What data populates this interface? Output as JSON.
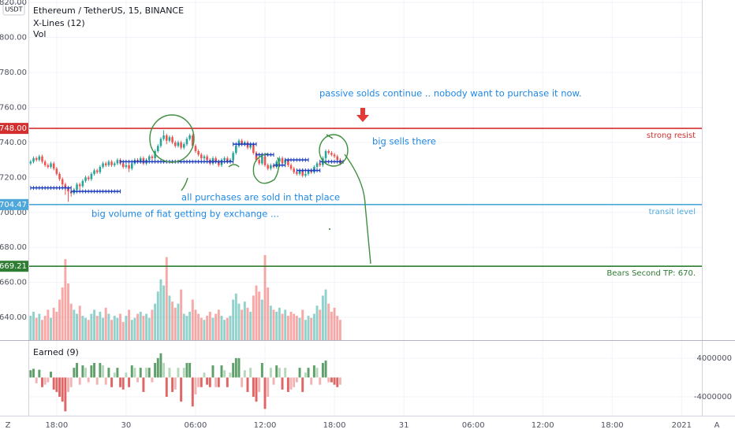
{
  "chart_data": {
    "type": "candlestick",
    "title": "Ethereum / TetherUS, 15, BINANCE",
    "currency": "USDT",
    "indicators": [
      "X-Lines (12)",
      "Vol"
    ],
    "grid": true,
    "up_color": "#26a69a",
    "down_color": "#ef5350",
    "xlim": [
      -0.5,
      232
    ],
    "ylim": [
      627,
      821.4
    ],
    "yticks": [
      {
        "value": 820,
        "label": "820.00"
      },
      {
        "value": 800,
        "label": "800.00"
      },
      {
        "value": 780,
        "label": "780.00"
      },
      {
        "value": 760,
        "label": "760.00"
      },
      {
        "value": 740,
        "label": "740.00"
      },
      {
        "value": 720,
        "label": "720.00"
      },
      {
        "value": 700,
        "label": "700.00"
      },
      {
        "value": 680,
        "label": "680.00"
      },
      {
        "value": 660,
        "label": "660.00"
      },
      {
        "value": 640,
        "label": "640.00"
      }
    ],
    "xticks": [
      {
        "value": 9,
        "label": "18:00"
      },
      {
        "value": 33,
        "label": "30"
      },
      {
        "value": 57,
        "label": "06:00"
      },
      {
        "value": 81,
        "label": "12:00"
      },
      {
        "value": 105,
        "label": "18:00"
      },
      {
        "value": 129,
        "label": "31"
      },
      {
        "value": 153,
        "label": "06:00"
      },
      {
        "value": 177,
        "label": "12:00"
      },
      {
        "value": 201,
        "label": "18:00"
      },
      {
        "value": 225,
        "label": "2021"
      }
    ],
    "candles": [
      [
        728,
        730,
        727,
        729
      ],
      [
        729,
        732,
        728,
        731
      ],
      [
        731,
        732,
        729,
        730
      ],
      [
        730,
        733,
        729,
        732
      ],
      [
        732,
        733,
        728,
        729
      ],
      [
        729,
        730,
        726,
        727
      ],
      [
        727,
        728,
        725,
        726
      ],
      [
        726,
        729,
        725,
        728
      ],
      [
        728,
        729,
        724,
        725
      ],
      [
        725,
        726,
        721,
        722
      ],
      [
        722,
        723,
        718,
        719
      ],
      [
        719,
        720,
        714,
        716
      ],
      [
        716,
        717,
        710,
        714
      ],
      [
        714,
        715,
        706,
        712
      ],
      [
        712,
        713,
        709,
        711
      ],
      [
        711,
        714,
        710,
        713
      ],
      [
        713,
        717,
        712,
        716
      ],
      [
        716,
        717,
        713,
        715
      ],
      [
        715,
        719,
        714,
        718
      ],
      [
        718,
        721,
        717,
        720
      ],
      [
        720,
        721,
        718,
        719
      ],
      [
        719,
        723,
        718,
        722
      ],
      [
        722,
        725,
        721,
        724
      ],
      [
        724,
        725,
        722,
        723
      ],
      [
        723,
        727,
        722,
        726
      ],
      [
        726,
        729,
        725,
        728
      ],
      [
        728,
        729,
        726,
        727
      ],
      [
        727,
        730,
        726,
        729
      ],
      [
        729,
        730,
        726,
        727
      ],
      [
        727,
        729,
        726,
        728
      ],
      [
        728,
        731,
        727,
        730
      ],
      [
        730,
        731,
        727,
        728
      ],
      [
        728,
        729,
        725,
        726
      ],
      [
        726,
        728,
        725,
        727
      ],
      [
        727,
        728,
        723,
        725
      ],
      [
        725,
        729,
        724,
        728
      ],
      [
        728,
        731,
        727,
        730
      ],
      [
        730,
        731,
        728,
        729
      ],
      [
        729,
        732,
        728,
        731
      ],
      [
        731,
        732,
        727,
        728
      ],
      [
        728,
        731,
        727,
        730
      ],
      [
        730,
        733,
        729,
        732
      ],
      [
        732,
        733,
        730,
        731
      ],
      [
        731,
        736,
        730,
        735
      ],
      [
        735,
        739,
        734,
        738
      ],
      [
        738,
        743,
        737,
        742
      ],
      [
        742,
        747,
        741,
        744
      ],
      [
        744,
        745,
        739,
        741
      ],
      [
        741,
        744,
        740,
        743
      ],
      [
        743,
        744,
        739,
        740
      ],
      [
        740,
        741,
        737,
        738
      ],
      [
        738,
        741,
        737,
        740
      ],
      [
        740,
        741,
        736,
        737
      ],
      [
        737,
        740,
        736,
        739
      ],
      [
        739,
        743,
        738,
        742
      ],
      [
        742,
        745,
        741,
        744
      ],
      [
        744,
        745,
        737,
        738
      ],
      [
        738,
        739,
        734,
        735
      ],
      [
        735,
        736,
        732,
        733
      ],
      [
        733,
        734,
        730,
        731
      ],
      [
        731,
        733,
        730,
        732
      ],
      [
        732,
        733,
        729,
        730
      ],
      [
        730,
        731,
        727,
        728
      ],
      [
        728,
        732,
        727,
        731
      ],
      [
        731,
        732,
        728,
        729
      ],
      [
        729,
        730,
        726,
        727
      ],
      [
        727,
        731,
        726,
        730
      ],
      [
        730,
        732,
        729,
        731
      ],
      [
        731,
        732,
        728,
        729
      ],
      [
        729,
        731,
        728,
        730
      ],
      [
        730,
        735,
        729,
        734
      ],
      [
        734,
        739,
        733,
        738
      ],
      [
        738,
        742,
        737,
        741
      ],
      [
        741,
        742,
        738,
        739
      ],
      [
        739,
        741,
        738,
        740
      ],
      [
        740,
        741,
        736,
        737
      ],
      [
        737,
        740,
        736,
        739
      ],
      [
        739,
        740,
        733,
        734
      ],
      [
        734,
        735,
        729,
        730
      ],
      [
        730,
        731,
        727,
        728
      ],
      [
        728,
        733,
        727,
        732
      ],
      [
        732,
        733,
        726,
        727
      ],
      [
        727,
        728,
        724,
        725
      ],
      [
        725,
        728,
        724,
        727
      ],
      [
        727,
        728,
        725,
        726
      ],
      [
        726,
        730,
        725,
        729
      ],
      [
        729,
        732,
        728,
        731
      ],
      [
        731,
        732,
        727,
        728
      ],
      [
        728,
        731,
        727,
        730
      ],
      [
        730,
        731,
        726,
        727
      ],
      [
        727,
        728,
        724,
        725
      ],
      [
        725,
        726,
        722,
        723
      ],
      [
        723,
        724,
        721,
        722
      ],
      [
        722,
        725,
        721,
        724
      ],
      [
        724,
        725,
        720,
        721
      ],
      [
        721,
        723,
        720,
        722
      ],
      [
        722,
        725,
        721,
        724
      ],
      [
        724,
        725,
        722,
        723
      ],
      [
        723,
        727,
        722,
        726
      ],
      [
        726,
        729,
        725,
        728
      ],
      [
        728,
        729,
        726,
        727
      ],
      [
        727,
        732,
        726,
        731
      ],
      [
        731,
        736,
        730,
        735
      ],
      [
        735,
        736,
        733,
        734
      ],
      [
        734,
        735,
        732,
        733
      ],
      [
        733,
        734,
        731,
        732
      ],
      [
        732,
        733,
        729,
        730
      ],
      [
        730,
        731,
        727,
        728
      ]
    ],
    "volume": [
      1200,
      1400,
      1100,
      1300,
      1000,
      1200,
      1500,
      1100,
      1600,
      1400,
      2000,
      2600,
      4000,
      2800,
      1800,
      1500,
      1300,
      1700,
      1200,
      1100,
      1000,
      1300,
      1500,
      1200,
      1400,
      1100,
      1600,
      1300,
      1000,
      1200,
      1100,
      1300,
      900,
      1200,
      1500,
      1000,
      1100,
      1300,
      1400,
      1200,
      1300,
      1100,
      1500,
      1800,
      2400,
      3000,
      2700,
      4100,
      2200,
      1900,
      1600,
      1800,
      2500,
      1300,
      1200,
      1400,
      2000,
      1500,
      1300,
      1100,
      1000,
      1200,
      1400,
      1100,
      1300,
      1500,
      1200,
      1000,
      1100,
      1200,
      2000,
      2300,
      1800,
      1500,
      1900,
      1600,
      1400,
      2200,
      2700,
      2400,
      2000,
      4200,
      2600,
      1700,
      1500,
      1400,
      1600,
      1300,
      1500,
      1200,
      1400,
      1300,
      1200,
      1100,
      1500,
      1000,
      1200,
      1100,
      1300,
      1700,
      1500,
      2200,
      2500,
      1800,
      1400,
      1600,
      1200,
      1000
    ],
    "xlines": [
      {
        "start": 0,
        "end": 14,
        "value": 714
      },
      {
        "start": 14,
        "end": 31,
        "value": 712
      },
      {
        "start": 31,
        "end": 70,
        "value": 729
      },
      {
        "start": 70,
        "end": 78,
        "value": 739
      },
      {
        "start": 78,
        "end": 84,
        "value": 733
      },
      {
        "start": 84,
        "end": 88,
        "value": 727
      },
      {
        "start": 88,
        "end": 96,
        "value": 730
      },
      {
        "start": 92,
        "end": 100,
        "value": 724
      },
      {
        "start": 100,
        "end": 108,
        "value": 729
      }
    ],
    "levels": [
      {
        "value": 748,
        "label": "748.00",
        "name": "strong resist",
        "color": "#d32f2f"
      },
      {
        "value": 704.47,
        "label": "704.47",
        "name": "transit level",
        "color": "#4fa8dc"
      },
      {
        "value": 669.21,
        "label": "669.21",
        "name": "Bears Second TP: 670.",
        "color": "#2e7d32"
      }
    ],
    "annotations": [
      "passive solds continue .. nobody want to purchase it now.",
      "big sells there",
      "all purchases are sold in that place",
      "big volume of fiat getting by exchange ..."
    ],
    "earned": {
      "title": "Earned (9)",
      "ylim": [
        -7900000,
        7400000
      ],
      "yticks": [
        4000000,
        -4000000
      ],
      "values": [
        1500000,
        1800000,
        -1200000,
        1600000,
        -2000000,
        -1500000,
        -1000000,
        1200000,
        -2500000,
        -3000000,
        -4000000,
        -5000000,
        -7000000,
        -3000000,
        -2000000,
        2000000,
        3000000,
        -1500000,
        2500000,
        2000000,
        -1000000,
        2500000,
        3000000,
        -1500000,
        3000000,
        2500000,
        -1500000,
        2000000,
        -2000000,
        1000000,
        2000000,
        -2000000,
        -2500000,
        1000000,
        -2000000,
        2500000,
        2000000,
        -1000000,
        2000000,
        -3000000,
        2000000,
        2000000,
        -1000000,
        3000000,
        4000000,
        5000000,
        3000000,
        -4000000,
        2000000,
        -3000000,
        -2500000,
        2000000,
        -5000000,
        2000000,
        3000000,
        3000000,
        -6000000,
        -3500000,
        -2000000,
        -2000000,
        1000000,
        -1500000,
        -2000000,
        2500000,
        -2000000,
        -2000000,
        2500000,
        1500000,
        -2000000,
        1000000,
        3000000,
        4000000,
        4000000,
        -2000000,
        1500000,
        -3000000,
        2000000,
        -4000000,
        -5000000,
        -3000000,
        3000000,
        -6500000,
        -4000000,
        2000000,
        -1500000,
        2500000,
        2000000,
        -2500000,
        2000000,
        -3000000,
        -2500000,
        -2000000,
        -1000000,
        2000000,
        -3000000,
        1000000,
        2000000,
        -1500000,
        2500000,
        2000000,
        -1500000,
        3000000,
        3500000,
        -1000000,
        -1000000,
        -1500000,
        -2000000,
        -1500000
      ]
    },
    "toolbar": {
      "left": "Z",
      "right": "A"
    }
  }
}
